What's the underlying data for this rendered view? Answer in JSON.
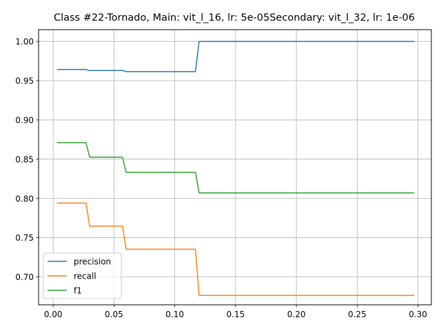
{
  "chart_data": {
    "type": "line",
    "title": "Class #22-Tornado, Main: vit_l_16, lr: 5e-05Secondary: vit_l_32, lr: 1e-06",
    "xlabel": "",
    "ylabel": "",
    "xlim": [
      -0.012,
      0.311
    ],
    "ylim": [
      0.6645,
      1.015
    ],
    "xticks": [
      0.0,
      0.05,
      0.1,
      0.15,
      0.2,
      0.25,
      0.3
    ],
    "xtick_labels": [
      "0.00",
      "0.05",
      "0.10",
      "0.15",
      "0.20",
      "0.25",
      "0.30"
    ],
    "yticks": [
      0.7,
      0.75,
      0.8,
      0.85,
      0.9,
      0.95,
      1.0
    ],
    "ytick_labels": [
      "0.70",
      "0.75",
      "0.80",
      "0.85",
      "0.90",
      "0.95",
      "1.00"
    ],
    "grid": true,
    "legend_position": "lower-left",
    "series": [
      {
        "name": "precision",
        "color": "#1f77b4",
        "points": [
          [
            0.003,
            0.9643
          ],
          [
            0.027,
            0.9643
          ],
          [
            0.029,
            0.963
          ],
          [
            0.057,
            0.963
          ],
          [
            0.06,
            0.9615
          ],
          [
            0.117,
            0.9615
          ],
          [
            0.12,
            1.0
          ],
          [
            0.297,
            1.0
          ]
        ]
      },
      {
        "name": "recall",
        "color": "#ff7f0e",
        "points": [
          [
            0.003,
            0.7941
          ],
          [
            0.027,
            0.7941
          ],
          [
            0.03,
            0.7647
          ],
          [
            0.057,
            0.7647
          ],
          [
            0.06,
            0.7353
          ],
          [
            0.117,
            0.7353
          ],
          [
            0.12,
            0.6765
          ],
          [
            0.297,
            0.6765
          ]
        ]
      },
      {
        "name": "f1",
        "color": "#2ca02c",
        "points": [
          [
            0.003,
            0.871
          ],
          [
            0.027,
            0.871
          ],
          [
            0.03,
            0.8525
          ],
          [
            0.057,
            0.8525
          ],
          [
            0.06,
            0.8333
          ],
          [
            0.117,
            0.8333
          ],
          [
            0.12,
            0.807
          ],
          [
            0.297,
            0.807
          ]
        ]
      }
    ]
  }
}
